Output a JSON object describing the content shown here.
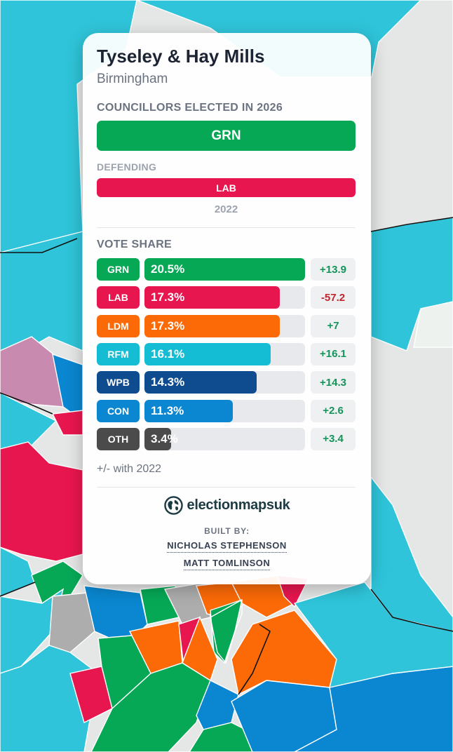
{
  "ward": {
    "name": "Tyseley & Hay Mills",
    "council": "Birmingham"
  },
  "elected": {
    "heading": "COUNCILLORS ELECTED IN 2026",
    "party": "GRN",
    "color": "#06a856"
  },
  "defending": {
    "heading": "DEFENDING",
    "party": "LAB",
    "year": "2022",
    "color": "#e8164e"
  },
  "vote_share": {
    "heading": "VOTE SHARE",
    "note": "+/- with 2022",
    "rows": [
      {
        "party": "GRN",
        "share": "20.5%",
        "fraction": 0.205,
        "change": "+13.9",
        "color": "#06a856",
        "change_color": "#15935a"
      },
      {
        "party": "LAB",
        "share": "17.3%",
        "fraction": 0.173,
        "change": "-57.2",
        "color": "#e8164e",
        "change_color": "#c0262d"
      },
      {
        "party": "LDM",
        "share": "17.3%",
        "fraction": 0.173,
        "change": "+7",
        "color": "#fc6a07",
        "change_color": "#15935a"
      },
      {
        "party": "RFM",
        "share": "16.1%",
        "fraction": 0.161,
        "change": "+16.1",
        "color": "#15bdd4",
        "change_color": "#15935a"
      },
      {
        "party": "WPB",
        "share": "14.3%",
        "fraction": 0.143,
        "change": "+14.3",
        "color": "#0e4c8f",
        "change_color": "#15935a"
      },
      {
        "party": "CON",
        "share": "11.3%",
        "fraction": 0.113,
        "change": "+2.6",
        "color": "#0a87d0",
        "change_color": "#15935a"
      },
      {
        "party": "OTH",
        "share": "3.4%",
        "fraction": 0.034,
        "change": "+3.4",
        "color": "#4b4b4b",
        "change_color": "#15935a"
      }
    ]
  },
  "brand": {
    "name": "electionmapsuk",
    "icon": "globe-icon"
  },
  "credits": {
    "heading": "BUILT BY:",
    "people": [
      "NICHOLAS STEPHENSON",
      "MATT TOMLINSON"
    ]
  }
}
